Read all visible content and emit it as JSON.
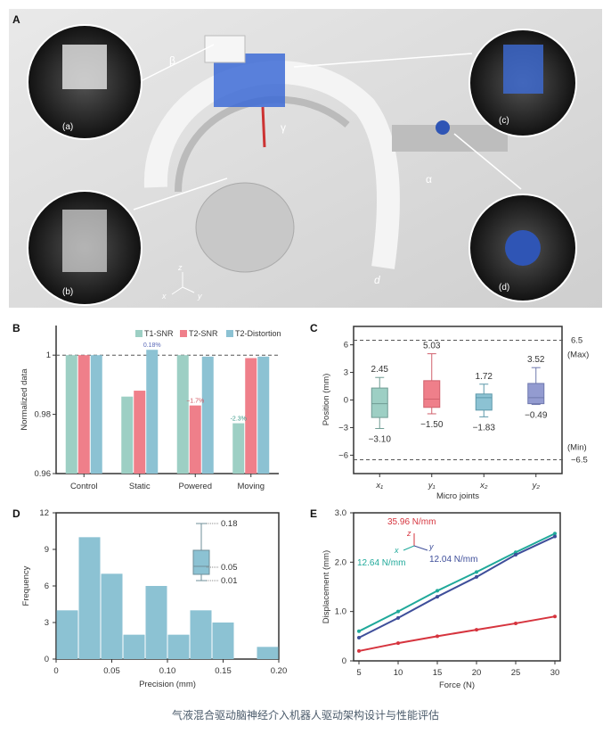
{
  "panel_a": {
    "label": "A",
    "insets": [
      "(a)",
      "(b)",
      "(c)",
      "(d)"
    ],
    "motion_labels": [
      "β",
      "γ",
      "α",
      "d"
    ],
    "axes": [
      "x",
      "y",
      "z"
    ]
  },
  "caption": "气液混合驱动脑神经介入机器人驱动架构设计与性能评估",
  "colors": {
    "teal": "#9dcfc4",
    "pink": "#ef7f8a",
    "blue": "#8cc2d3",
    "purple": "#939bd0",
    "lineTeal": "#1fa99a",
    "lineBlue": "#3e4e9a",
    "lineRed": "#d6343e"
  },
  "chart_data": [
    {
      "panel": "B",
      "type": "bar",
      "categories": [
        "Control",
        "Static",
        "Powered",
        "Moving"
      ],
      "series": [
        {
          "name": "T1-SNR",
          "values": [
            1.0,
            0.986,
            1.0,
            0.977
          ]
        },
        {
          "name": "T2-SNR",
          "values": [
            1.0,
            0.988,
            0.983,
            0.999
          ]
        },
        {
          "name": "T2-Distortion",
          "values": [
            1.0,
            1.0018,
            0.9995,
            0.9995
          ]
        }
      ],
      "annotations": [
        {
          "text": "0.18%",
          "category": "Static",
          "series": "T2-Distortion"
        },
        {
          "text": "−1.7%",
          "category": "Powered",
          "series": "T2-SNR"
        },
        {
          "text": "-2.3%",
          "category": "Moving",
          "series": "T1-SNR"
        }
      ],
      "reference_line": 1,
      "ylabel": "Normalized data",
      "yticks": [
        "0.96",
        "0.98",
        "1"
      ],
      "ylim": [
        0.96,
        1.01
      ],
      "legend": "top-right"
    },
    {
      "panel": "C",
      "type": "box",
      "categories": [
        "x₁",
        "y₁",
        "x₂",
        "y₂"
      ],
      "boxes": [
        {
          "min": -3.1,
          "q1": -1.9,
          "median": -0.4,
          "q3": 1.3,
          "max": 2.45,
          "min_label": "−3.10",
          "max_label": "2.45"
        },
        {
          "min": -1.5,
          "q1": -0.8,
          "median": 0.1,
          "q3": 2.1,
          "max": 5.03,
          "min_label": "−1.50",
          "max_label": "5.03"
        },
        {
          "min": -1.83,
          "q1": -1.1,
          "median": 0.25,
          "q3": 0.65,
          "max": 1.72,
          "min_label": "−1.83",
          "max_label": "1.72"
        },
        {
          "min": -0.49,
          "q1": -0.4,
          "median": 0.25,
          "q3": 1.8,
          "max": 3.52,
          "min_label": "−0.49",
          "max_label": "3.52"
        }
      ],
      "limits": [
        {
          "value": 6.5,
          "label": "6.5",
          "note": "(Max)"
        },
        {
          "value": -6.5,
          "label": "−6.5",
          "note": "(Min)"
        }
      ],
      "xlabel": "Micro joints",
      "ylabel": "Position (mm)",
      "yticks": [
        "−6",
        "−3",
        "0",
        "3",
        "6"
      ],
      "ytick_values": [
        -6,
        -3,
        0,
        3,
        6
      ],
      "ylim": [
        -8,
        8
      ]
    },
    {
      "panel": "D",
      "type": "bar",
      "subtype": "histogram",
      "bin_width": 0.02,
      "bin_start": 0,
      "values": [
        4,
        10,
        7,
        2,
        6,
        2,
        4,
        3,
        0,
        1
      ],
      "inset_box_labels": [
        "0.18",
        "0.05",
        "0.01"
      ],
      "xlabel": "Precision (mm)",
      "ylabel": "Frequency",
      "xticks": [
        "0",
        "0.05",
        "0.10",
        "0.15",
        "0.20"
      ],
      "xtick_values": [
        0,
        0.05,
        0.1,
        0.15,
        0.2
      ],
      "yticks": [
        "0",
        "3",
        "6",
        "9",
        "12"
      ],
      "ytick_values": [
        0,
        3,
        6,
        9,
        12
      ],
      "xlim": [
        0,
        0.2
      ],
      "ylim": [
        0,
        12
      ]
    },
    {
      "panel": "E",
      "type": "line",
      "x": [
        5,
        10,
        15,
        20,
        25,
        30
      ],
      "series": [
        {
          "name": "x",
          "label": "12.64 N/mm",
          "values": [
            0.6,
            1.0,
            1.42,
            1.8,
            2.2,
            2.58
          ]
        },
        {
          "name": "y",
          "label": "12.04 N/mm",
          "values": [
            0.47,
            0.87,
            1.3,
            1.7,
            2.15,
            2.52
          ]
        },
        {
          "name": "z",
          "label": "35.96 N/mm",
          "values": [
            0.2,
            0.36,
            0.5,
            0.63,
            0.76,
            0.9
          ]
        }
      ],
      "xlabel": "Force (N)",
      "ylabel": "Displacement (mm)",
      "xticks": [
        "5",
        "10",
        "15",
        "20",
        "25",
        "30"
      ],
      "yticks": [
        "0",
        "1.0",
        "2.0",
        "3.0"
      ],
      "ytick_values": [
        0,
        1,
        2,
        3
      ],
      "xlim": [
        5,
        30
      ],
      "ylim": [
        0,
        3
      ]
    }
  ]
}
